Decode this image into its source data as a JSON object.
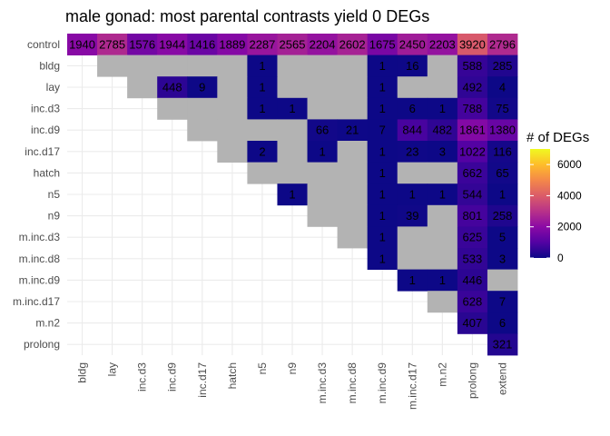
{
  "chart_data": {
    "type": "heatmap",
    "title": "male gonad: most parental contrasts yield 0 DEGs",
    "x_categories": [
      "bldg",
      "lay",
      "inc.d3",
      "inc.d9",
      "inc.d17",
      "hatch",
      "n5",
      "n9",
      "m.inc.d3",
      "m.inc.d8",
      "m.inc.d9",
      "m.inc.d17",
      "m.n2",
      "prolong",
      "extend"
    ],
    "y_categories": [
      "control",
      "bldg",
      "lay",
      "inc.d3",
      "inc.d9",
      "inc.d17",
      "hatch",
      "n5",
      "n9",
      "m.inc.d3",
      "m.inc.d8",
      "m.inc.d9",
      "m.inc.d17",
      "m.n2",
      "prolong"
    ],
    "cells": [
      [
        "1940",
        "2785",
        "1576",
        "1944",
        "1416",
        "1889",
        "2287",
        "2565",
        "2204",
        "2602",
        "1675",
        "2450",
        "2203",
        "3920",
        "2796"
      ],
      [
        null,
        "0",
        "0",
        "0",
        "0",
        "0",
        "1",
        "0",
        "0",
        "0",
        "1",
        "16",
        "0",
        "588",
        "285"
      ],
      [
        null,
        null,
        "0",
        "448",
        "9",
        "0",
        "1",
        "0",
        "0",
        "0",
        "1",
        "0",
        "0",
        "492",
        "4"
      ],
      [
        null,
        null,
        null,
        "0",
        "0",
        "0",
        "1",
        "1",
        "0",
        "0",
        "1",
        "6",
        "1",
        "788",
        "75"
      ],
      [
        null,
        null,
        null,
        null,
        "0",
        "0",
        "0",
        "0",
        "66",
        "21",
        "7",
        "844",
        "482",
        "1861",
        "1380"
      ],
      [
        null,
        null,
        null,
        null,
        null,
        "0",
        "2",
        "0",
        "1",
        "0",
        "1",
        "23",
        "3",
        "1022",
        "116"
      ],
      [
        null,
        null,
        null,
        null,
        null,
        null,
        "0",
        "0",
        "0",
        "0",
        "1",
        "0",
        "0",
        "662",
        "65"
      ],
      [
        null,
        null,
        null,
        null,
        null,
        null,
        null,
        "1",
        "0",
        "0",
        "1",
        "1",
        "1",
        "544",
        "1"
      ],
      [
        null,
        null,
        null,
        null,
        null,
        null,
        null,
        null,
        "0",
        "0",
        "1",
        "39",
        "0",
        "801",
        "258"
      ],
      [
        null,
        null,
        null,
        null,
        null,
        null,
        null,
        null,
        null,
        "0",
        "1",
        "0",
        "0",
        "625",
        "5"
      ],
      [
        null,
        null,
        null,
        null,
        null,
        null,
        null,
        null,
        null,
        null,
        "1",
        "0",
        "0",
        "533",
        "3"
      ],
      [
        null,
        null,
        null,
        null,
        null,
        null,
        null,
        null,
        null,
        null,
        null,
        "1",
        "1",
        "446",
        "0"
      ],
      [
        null,
        null,
        null,
        null,
        null,
        null,
        null,
        null,
        null,
        null,
        null,
        null,
        "0",
        "628",
        "7"
      ],
      [
        null,
        null,
        null,
        null,
        null,
        null,
        null,
        null,
        null,
        null,
        null,
        null,
        null,
        "407",
        "6"
      ],
      [
        null,
        null,
        null,
        null,
        null,
        null,
        null,
        null,
        null,
        null,
        null,
        null,
        null,
        null,
        "321"
      ]
    ],
    "zero_color": "#b3b3b3",
    "colorscale": [
      "#0d0887",
      "#5302a3",
      "#8b0aa5",
      "#b83289",
      "#db5c68",
      "#f48849",
      "#febd2a",
      "#f0f921"
    ],
    "legend": {
      "title": "# of DEGs",
      "ticks": [
        0,
        2000,
        4000,
        6000
      ],
      "range": [
        0,
        7000
      ],
      "placement": "right"
    },
    "grid": true
  }
}
